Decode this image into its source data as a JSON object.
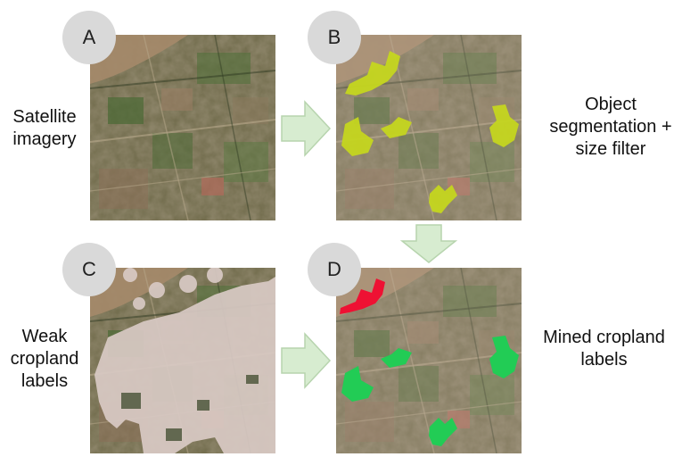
{
  "panels": [
    {
      "badge": "A"
    },
    {
      "badge": "B"
    },
    {
      "badge": "C"
    },
    {
      "badge": "D"
    }
  ],
  "captions": {
    "satellite": [
      "Satellite",
      "imagery"
    ],
    "segmentation": [
      "Object",
      "segmentation +",
      "size filter"
    ],
    "weak": [
      "Weak",
      "cropland",
      "labels"
    ],
    "mined": [
      "Mined cropland",
      "labels"
    ]
  },
  "colors": {
    "segment_fill": "#c5d61f",
    "rejected_fill": "#ee1133",
    "mined_fill": "#22cc55",
    "weak_label_fill": "#d8c9c4",
    "arrow_fill": "#d7ecd0",
    "arrow_stroke": "#b7d4ae",
    "badge_fill": "#d9d9d9"
  }
}
